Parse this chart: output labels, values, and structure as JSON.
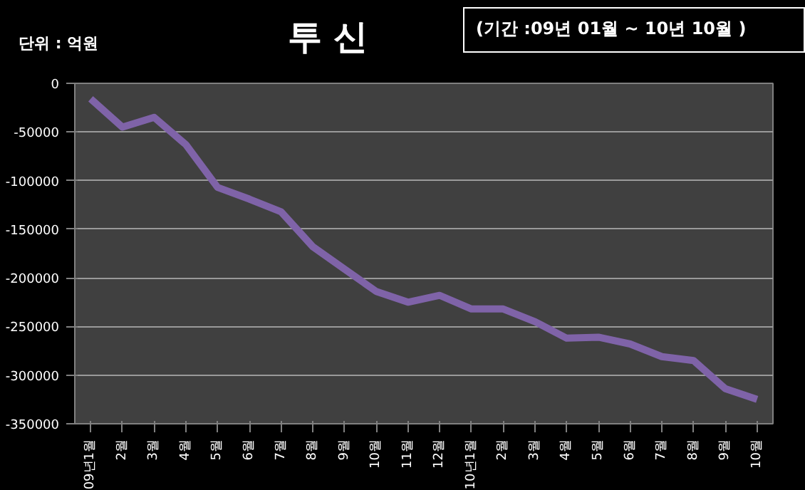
{
  "chart_data": {
    "type": "line",
    "title": "투 신",
    "annotations": [
      "단위 : 억원",
      "(기간 :09년 01월 ~ 10년 10월 )"
    ],
    "categories": [
      "09년1월",
      "2월",
      "3월",
      "4월",
      "5월",
      "6월",
      "7월",
      "8월",
      "9월",
      "10월",
      "11월",
      "12월",
      "10년1월",
      "2월",
      "3월",
      "4월",
      "5월",
      "6월",
      "7월",
      "8월",
      "9월",
      "10월"
    ],
    "series": [
      {
        "color": "#7f63a8",
        "values": [
          -16000,
          -45000,
          -35000,
          -63000,
          -107000,
          -119000,
          -132000,
          -168000,
          -191000,
          -214000,
          -225000,
          -218000,
          -232000,
          -232000,
          -245000,
          -262000,
          -261000,
          -268000,
          -281000,
          -285000,
          -314000,
          -325000
        ]
      }
    ],
    "ylim": [
      -350000,
      0
    ],
    "yticks": [
      -350000,
      -300000,
      -250000,
      -200000,
      -150000,
      -100000,
      -50000,
      0
    ],
    "grid": "y",
    "marker": "none",
    "line_style": "solid"
  }
}
